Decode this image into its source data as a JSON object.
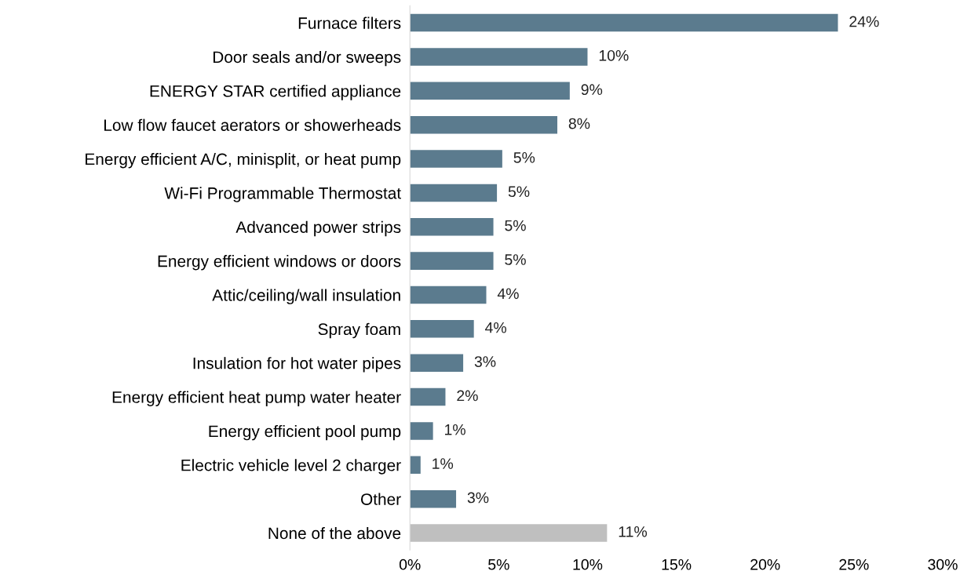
{
  "chart_data": {
    "type": "bar",
    "orientation": "horizontal",
    "categories": [
      "Furnace filters",
      "Door seals and/or sweeps",
      "ENERGY STAR certified appliance",
      "Low flow faucet aerators or showerheads",
      "Energy efficient A/C, minisplit, or heat pump",
      "Wi-Fi Programmable Thermostat",
      "Advanced power strips",
      "Energy efficient windows or doors",
      "Attic/ceiling/wall insulation",
      "Spray foam",
      "Insulation for hot water pipes",
      "Energy efficient heat pump water heater",
      "Energy efficient pool pump",
      "Electric vehicle level 2 charger",
      "Other",
      "None of the above"
    ],
    "values": [
      24.1,
      10.0,
      9.0,
      8.3,
      5.2,
      4.9,
      4.7,
      4.7,
      4.3,
      3.6,
      3.0,
      2.0,
      1.3,
      0.6,
      2.6,
      11.1
    ],
    "value_labels": [
      "24%",
      "10%",
      "9%",
      "8%",
      "5%",
      "5%",
      "5%",
      "5%",
      "4%",
      "4%",
      "3%",
      "2%",
      "1%",
      "1%",
      "3%",
      "11%"
    ],
    "colors": [
      "#5b7b8e",
      "#5b7b8e",
      "#5b7b8e",
      "#5b7b8e",
      "#5b7b8e",
      "#5b7b8e",
      "#5b7b8e",
      "#5b7b8e",
      "#5b7b8e",
      "#5b7b8e",
      "#5b7b8e",
      "#5b7b8e",
      "#5b7b8e",
      "#5b7b8e",
      "#5b7b8e",
      "#bfbfbf"
    ],
    "xlim": [
      0,
      30
    ],
    "xticks": [
      {
        "value": 0,
        "label": "0%"
      },
      {
        "value": 5,
        "label": "5%"
      },
      {
        "value": 10,
        "label": "10%"
      },
      {
        "value": 15,
        "label": "15%"
      },
      {
        "value": 20,
        "label": "20%"
      },
      {
        "value": 25,
        "label": "25%"
      },
      {
        "value": 30,
        "label": "30%"
      }
    ],
    "grid": false,
    "legend": false
  }
}
